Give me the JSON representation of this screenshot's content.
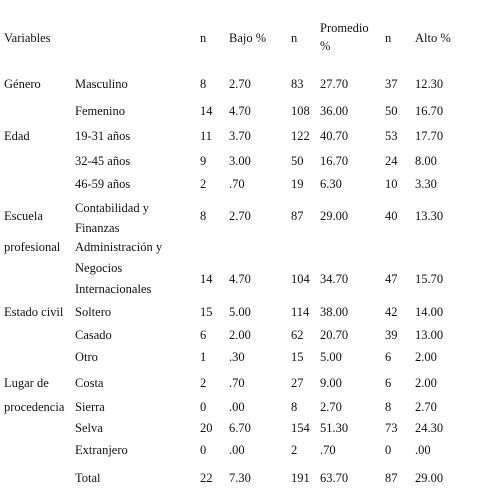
{
  "table": {
    "header": [
      "Variables",
      "n",
      "Bajo %",
      "n",
      "Promedio %",
      "n",
      "Alto %"
    ],
    "rows": [
      {
        "group": "Género",
        "label": "Masculino",
        "values": [
          "8",
          "2.70",
          "83",
          "27.70",
          "37",
          "12.30"
        ]
      },
      {
        "label": "Femenino",
        "values": [
          "14",
          "4.70",
          "108",
          "36.00",
          "50",
          "16.70"
        ]
      },
      {
        "group": "Edad",
        "label": "19-31 años",
        "values": [
          "11",
          "3.70",
          "122",
          "40.70",
          "53",
          "17.70"
        ]
      },
      {
        "label": "32-45 años",
        "values": [
          "9",
          "3.00",
          "50",
          "16.70",
          "24",
          "8.00"
        ]
      },
      {
        "label": "46-59 años",
        "values": [
          "2",
          ".70",
          "19",
          "6.30",
          "10",
          "3.30"
        ]
      },
      {
        "group": "Escuela profesional",
        "label": "Contabilidad y Finanzas",
        "values": [
          "8",
          "2.70",
          "87",
          "29.00",
          "40",
          "13.30"
        ]
      },
      {
        "label": "Administración y Negocios Internacionales",
        "values": [
          "14",
          "4.70",
          "104",
          "34.70",
          "47",
          "15.70"
        ]
      },
      {
        "group": "Estado civil",
        "label": "Soltero",
        "values": [
          "15",
          "5.00",
          "114",
          "38.00",
          "42",
          "14.00"
        ]
      },
      {
        "label": "Casado",
        "values": [
          "6",
          "2.00",
          "62",
          "20.70",
          "39",
          "13.00"
        ]
      },
      {
        "label": "Otro",
        "values": [
          "1",
          ".30",
          "15",
          "5.00",
          "6",
          "2.00"
        ]
      },
      {
        "group": "Lugar de procedencia",
        "label": "Costa",
        "values": [
          "2",
          ".70",
          "27",
          "9.00",
          "6",
          "2.00"
        ]
      },
      {
        "label": "Sierra",
        "values": [
          "0",
          ".00",
          "8",
          "2.70",
          "8",
          "2.70"
        ]
      },
      {
        "label": "Selva",
        "values": [
          "20",
          "6.70",
          "154",
          "51.30",
          "73",
          "24.30"
        ]
      },
      {
        "label": "Extranjero",
        "values": [
          "0",
          ".00",
          "2",
          ".70",
          "0",
          ".00"
        ]
      },
      {
        "label": "Total",
        "values": [
          "22",
          "7.30",
          "191",
          "63.70",
          "87",
          "29.00"
        ]
      }
    ]
  }
}
